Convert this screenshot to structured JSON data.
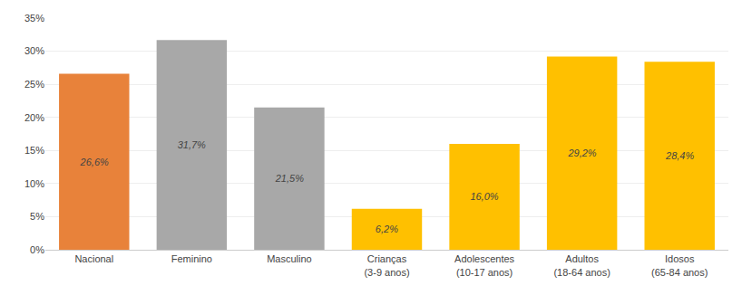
{
  "chart_data": {
    "type": "bar",
    "categories": [
      "Nacional",
      "Feminino",
      "Masculino",
      "Crianças\n(3-9 anos)",
      "Adolescentes\n(10-17 anos)",
      "Adultos\n(18-64 anos)",
      "Idosos\n(65-84 anos)"
    ],
    "values": [
      26.6,
      31.7,
      21.5,
      6.2,
      16.0,
      29.2,
      28.4
    ],
    "value_labels": [
      "26,6%",
      "31,7%",
      "21,5%",
      "6,2%",
      "16,0%",
      "29,2%",
      "28,4%"
    ],
    "colors": [
      "#E8823A",
      "#A8A8A8",
      "#A8A8A8",
      "#FFC000",
      "#FFC000",
      "#FFC000",
      "#FFC000"
    ],
    "data_labels": true,
    "ylim": [
      0,
      35
    ],
    "yticks": [
      {
        "value": 0,
        "label": "0%"
      },
      {
        "value": 5,
        "label": "5%"
      },
      {
        "value": 10,
        "label": "10%"
      },
      {
        "value": 15,
        "label": "15%"
      },
      {
        "value": 20,
        "label": "20%"
      },
      {
        "value": 25,
        "label": "25%"
      },
      {
        "value": 30,
        "label": "30%"
      },
      {
        "value": 35,
        "label": "35%"
      }
    ],
    "grid": true
  }
}
